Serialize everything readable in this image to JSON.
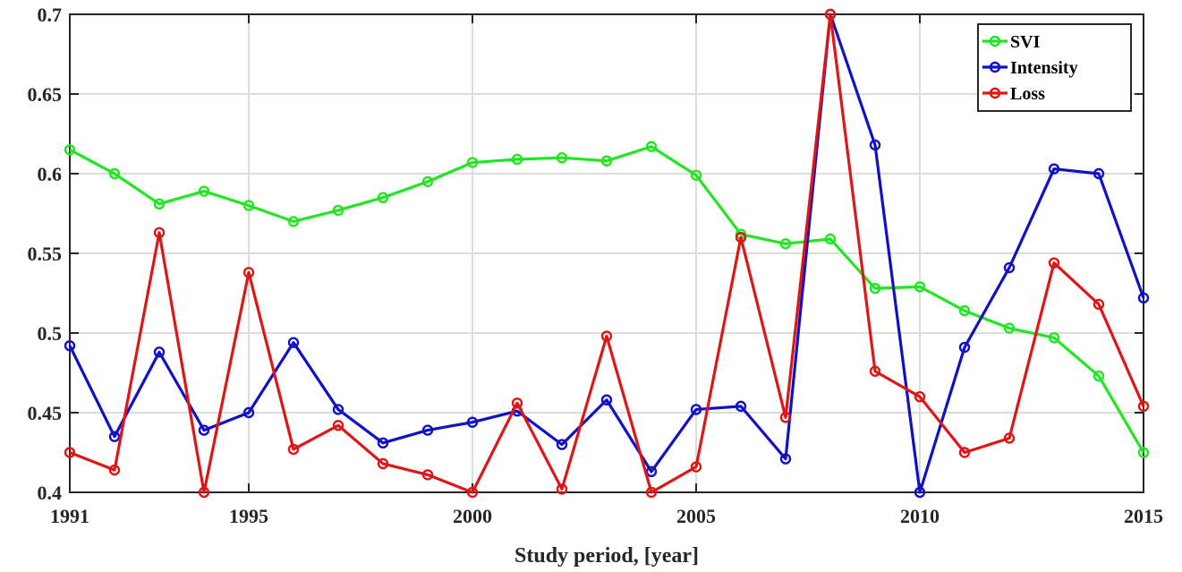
{
  "chart_data": {
    "type": "line",
    "title": "",
    "xlabel": "Study period, [year]",
    "ylabel": "",
    "xlim": [
      1991,
      2015
    ],
    "ylim": [
      0.4,
      0.7
    ],
    "x_ticks": [
      1991,
      1995,
      2000,
      2005,
      2010,
      2015
    ],
    "y_ticks": [
      0.4,
      0.45,
      0.5,
      0.55,
      0.6,
      0.65,
      0.7
    ],
    "y_tick_labels": [
      "0.4",
      "0.45",
      "0.5",
      "0.55",
      "0.6",
      "0.65",
      "0.7"
    ],
    "grid": true,
    "legend_position": "top-right",
    "x": [
      1991,
      1992,
      1993,
      1994,
      1995,
      1996,
      1997,
      1998,
      1999,
      2000,
      2001,
      2002,
      2003,
      2004,
      2005,
      2006,
      2007,
      2008,
      2009,
      2010,
      2011,
      2012,
      2013,
      2014,
      2015
    ],
    "series": [
      {
        "name": "SVI",
        "color": "#22e622",
        "values": [
          0.615,
          0.6,
          0.581,
          0.589,
          0.58,
          0.57,
          0.577,
          0.585,
          0.595,
          0.607,
          0.609,
          0.61,
          0.608,
          0.617,
          0.599,
          0.562,
          0.556,
          0.559,
          0.528,
          0.529,
          0.514,
          0.503,
          0.497,
          0.473,
          0.425
        ]
      },
      {
        "name": "Intensity",
        "color": "#1010c8",
        "values": [
          0.492,
          0.435,
          0.488,
          0.439,
          0.45,
          0.494,
          0.452,
          0.431,
          0.439,
          0.444,
          0.451,
          0.43,
          0.458,
          0.413,
          0.452,
          0.454,
          0.421,
          0.7,
          0.618,
          0.4,
          0.491,
          0.541,
          0.603,
          0.6,
          0.522
        ]
      },
      {
        "name": "Loss",
        "color": "#e01515",
        "values": [
          0.425,
          0.414,
          0.563,
          0.4,
          0.538,
          0.427,
          0.442,
          0.418,
          0.411,
          0.4,
          0.456,
          0.402,
          0.498,
          0.4,
          0.416,
          0.56,
          0.447,
          0.7,
          0.476,
          0.46,
          0.425,
          0.434,
          0.544,
          0.518,
          0.454
        ]
      }
    ]
  }
}
